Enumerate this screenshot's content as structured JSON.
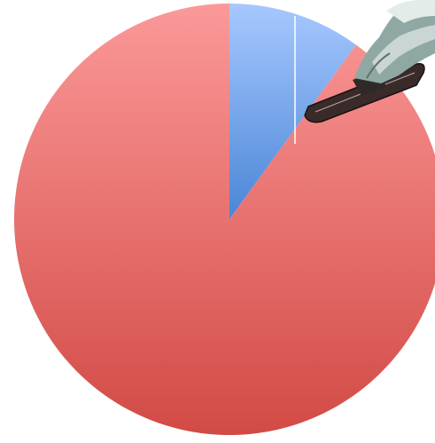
{
  "chart_data": {
    "type": "pie",
    "title": "",
    "slices": [
      {
        "value": 10,
        "color": "#5b8fd9"
      },
      {
        "value": 90,
        "color": "#e06461"
      }
    ],
    "start_angle_deg": 0,
    "direction": "clockwise",
    "legend": "none",
    "data_labels": "none",
    "decoration": "snowboarder-illustration"
  }
}
